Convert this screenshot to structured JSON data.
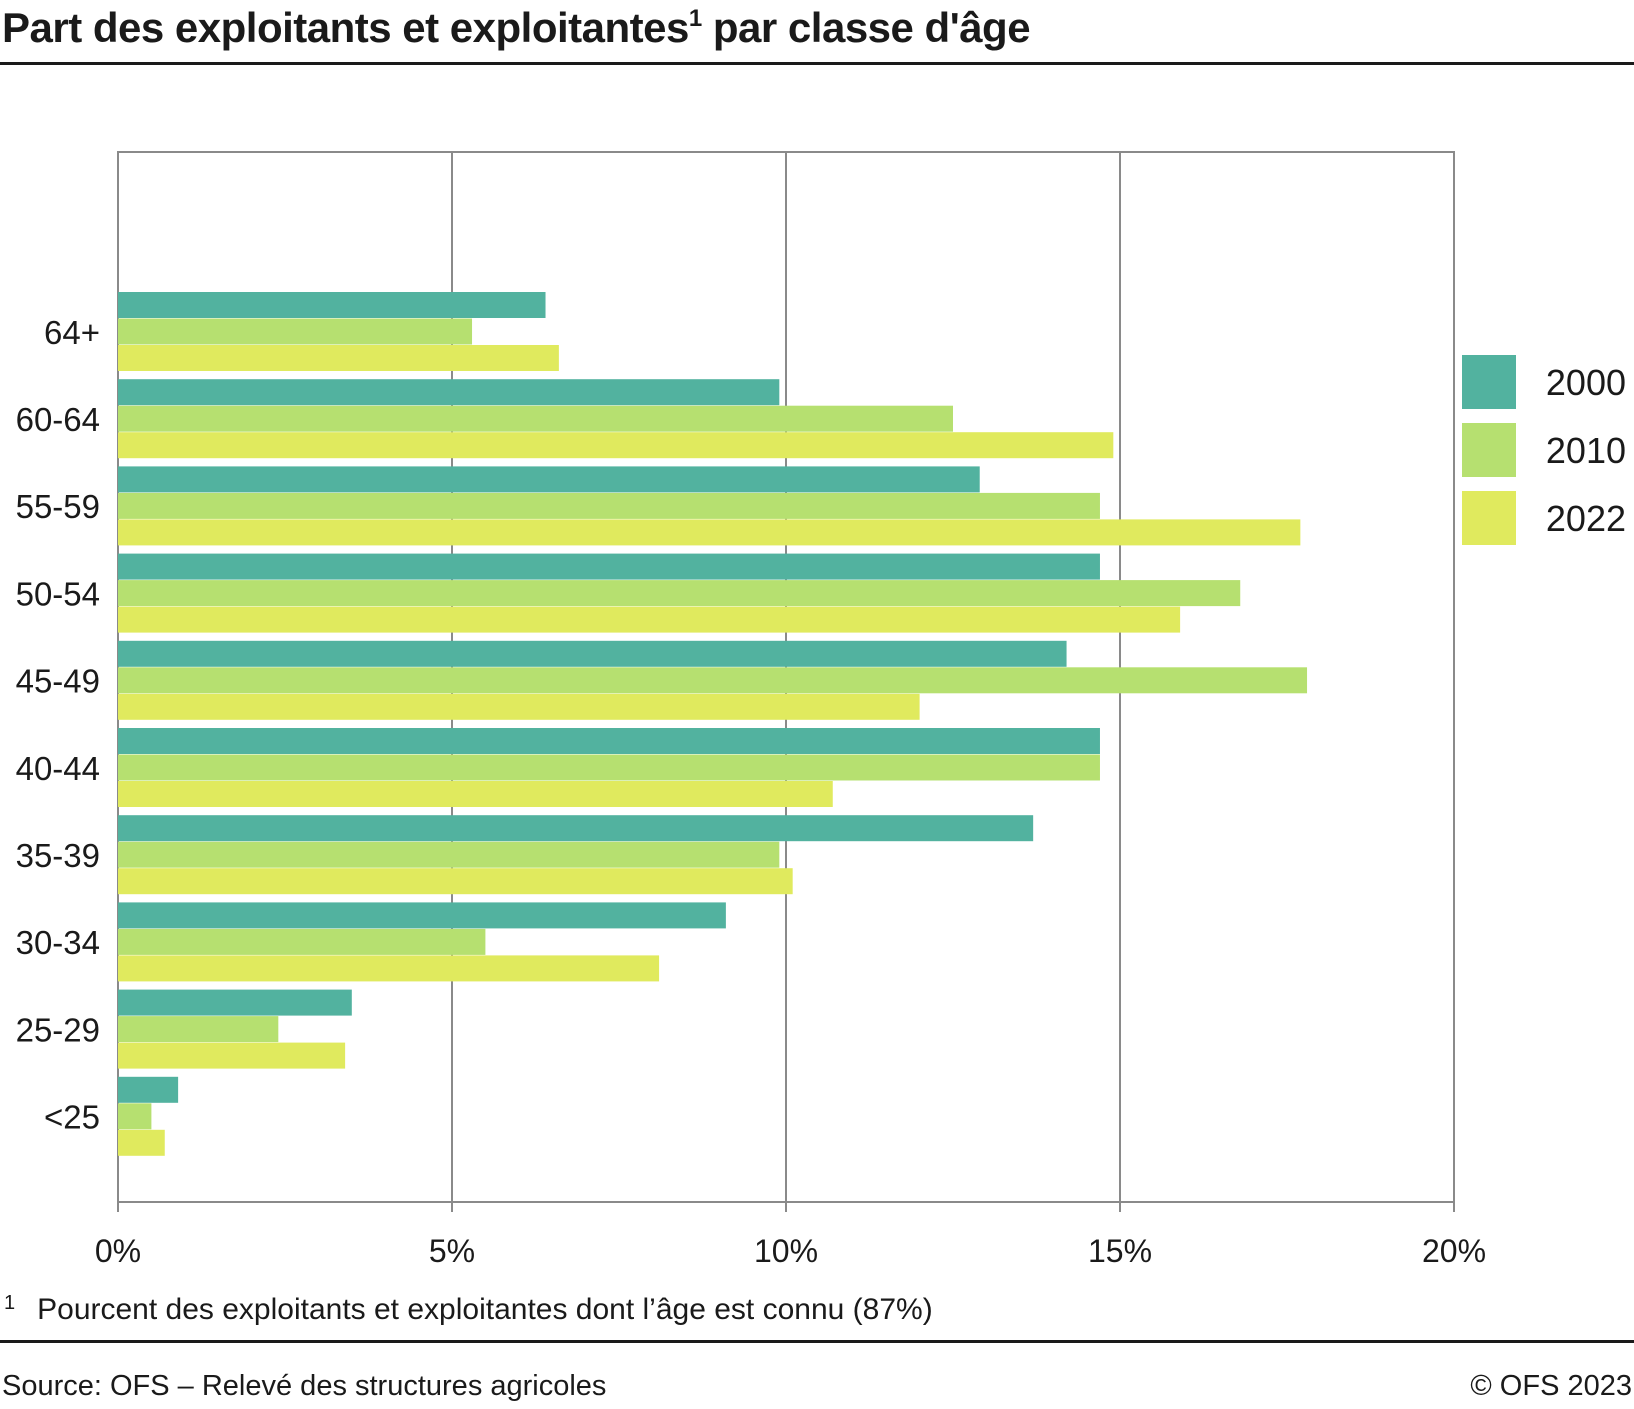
{
  "title": {
    "text": "Part des exploitants et exploitantes",
    "footnote_mark": "1",
    "suffix": " par classe d'âge"
  },
  "footnote": {
    "mark": "1",
    "text": "Pourcent des exploitants et exploitantes dont l’âge est connu (87%)"
  },
  "source": "Source: OFS – Relevé des structures agricoles",
  "copyright": "© OFS 2023",
  "chart_data": {
    "type": "bar",
    "orientation": "horizontal",
    "categories": [
      "64+",
      "60-64",
      "55-59",
      "50-54",
      "45-49",
      "40-44",
      "35-39",
      "30-34",
      "25-29",
      "<25"
    ],
    "series": [
      {
        "name": "2000",
        "color": "#52b29f",
        "values": [
          6.4,
          9.9,
          12.9,
          14.7,
          14.2,
          14.7,
          13.7,
          9.1,
          3.5,
          0.9
        ]
      },
      {
        "name": "2010",
        "color": "#b6e070",
        "values": [
          5.3,
          12.5,
          14.7,
          16.8,
          17.8,
          14.7,
          9.9,
          5.5,
          2.4,
          0.5
        ]
      },
      {
        "name": "2022",
        "color": "#e0ea5e",
        "values": [
          6.6,
          14.9,
          17.7,
          15.9,
          12.0,
          10.7,
          10.1,
          8.1,
          3.4,
          0.7
        ]
      }
    ],
    "xlim": [
      0,
      20
    ],
    "xticks": [
      "0%",
      "5%",
      "10%",
      "15%",
      "20%"
    ],
    "grid": true,
    "legend_position": "right"
  }
}
